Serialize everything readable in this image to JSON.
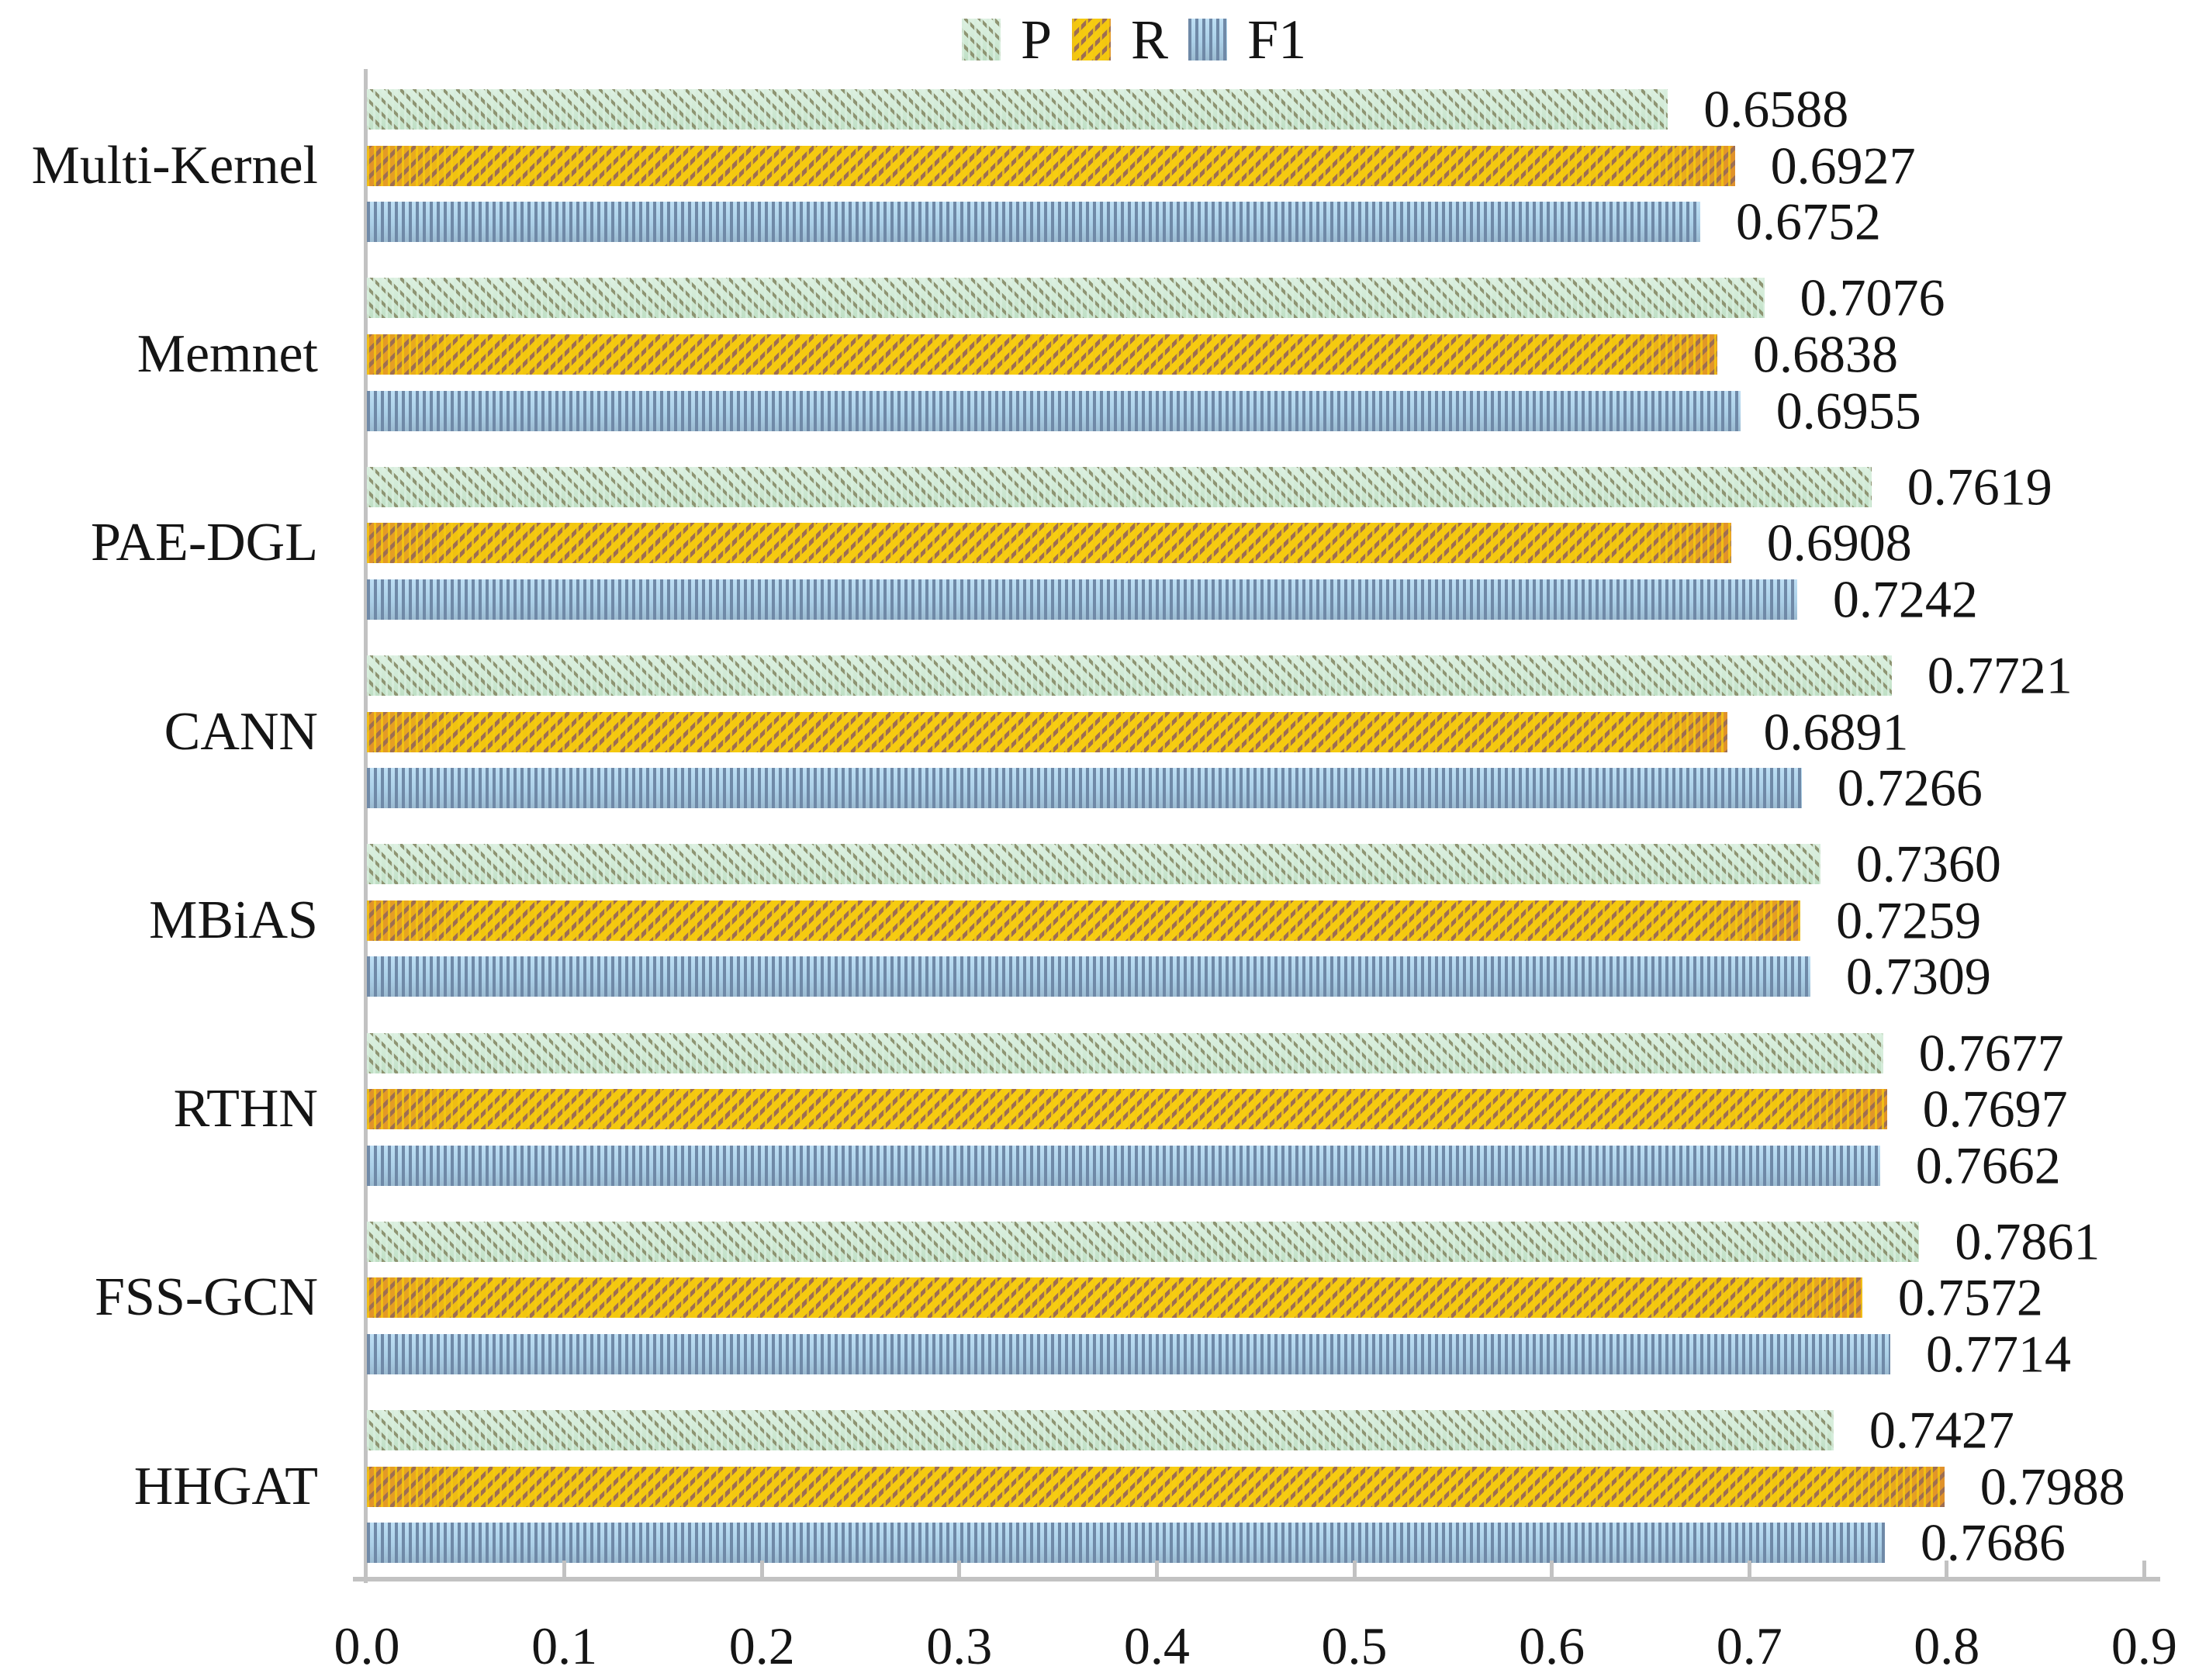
{
  "legend": {
    "p": "P",
    "r": "R",
    "f1": "F1"
  },
  "chart_data": {
    "type": "bar",
    "orientation": "horizontal",
    "title": "",
    "xlabel": "",
    "ylabel": "",
    "categories": [
      "Multi-Kernel",
      "Memnet",
      "PAE-DGL",
      "CANN",
      "MBiAS",
      "RTHN",
      "FSS-GCN",
      "HHGAT"
    ],
    "series": [
      {
        "name": "P",
        "hatch": "diagonal-forward",
        "base_color": "#cfe9d4",
        "hatch_color": "#8e9472",
        "values": [
          0.6588,
          0.7076,
          0.7619,
          0.7721,
          0.736,
          0.7677,
          0.7861,
          0.7427
        ],
        "labels": [
          "0.6588",
          "0.7076",
          "0.7619",
          "0.7721",
          "0.7360",
          "0.7677",
          "0.7861",
          "0.7427"
        ]
      },
      {
        "name": "R",
        "hatch": "diagonal-back",
        "base_color": "#f2c60f",
        "hatch_color": "#9e6e52",
        "values": [
          0.6927,
          0.6838,
          0.6908,
          0.6891,
          0.7259,
          0.7697,
          0.7572,
          0.7988
        ],
        "labels": [
          "0.6927",
          "0.6838",
          "0.6908",
          "0.6891",
          "0.7259",
          "0.7697",
          "0.7572",
          "0.7988"
        ]
      },
      {
        "name": "F1",
        "hatch": "vertical",
        "base_color": "#abd0e8",
        "hatch_color": "#6f89a7",
        "values": [
          0.6752,
          0.6955,
          0.7242,
          0.7266,
          0.7309,
          0.7662,
          0.7714,
          0.7686
        ],
        "labels": [
          "0.6752",
          "0.6955",
          "0.7242",
          "0.7266",
          "0.7309",
          "0.7662",
          "0.7714",
          "0.7686"
        ]
      }
    ],
    "xlim": [
      0.0,
      0.9
    ],
    "xticks": [
      "0.0",
      "0.1",
      "0.2",
      "0.3",
      "0.4",
      "0.5",
      "0.6",
      "0.7",
      "0.8",
      "0.9"
    ],
    "legend_position": "top",
    "grid": false,
    "axis_color": "#c2c2c2"
  }
}
